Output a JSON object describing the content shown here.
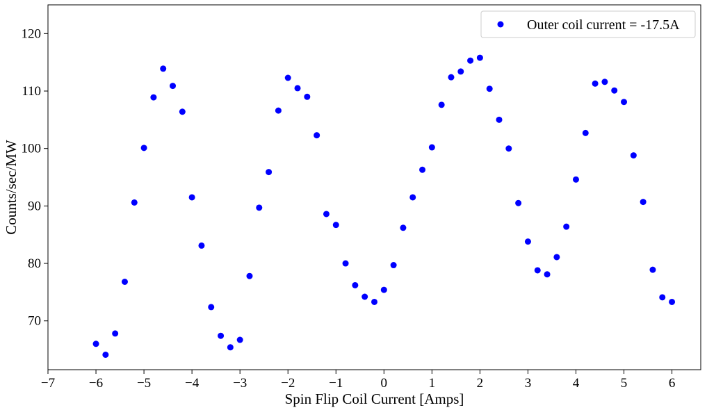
{
  "chart_data": {
    "type": "scatter",
    "xlabel": "Spin Flip Coil Current [Amps]",
    "ylabel": "Counts/sec/MW",
    "xlim": [
      -7,
      6.6
    ],
    "ylim": [
      61.5,
      125
    ],
    "xticks": [
      -7,
      -6,
      -5,
      -4,
      -3,
      -2,
      -1,
      0,
      1,
      2,
      3,
      4,
      5,
      6
    ],
    "xtick_labels": [
      "−7",
      "−6",
      "−5",
      "−4",
      "−3",
      "−2",
      "−1",
      "0",
      "1",
      "2",
      "3",
      "4",
      "5",
      "6"
    ],
    "yticks": [
      70,
      80,
      90,
      100,
      110,
      120
    ],
    "ytick_labels": [
      "70",
      "80",
      "90",
      "100",
      "110",
      "120"
    ],
    "grid": false,
    "legend_position": "top-right",
    "series": [
      {
        "name": "Outer coil current = -17.5A",
        "color": "#0000ff",
        "marker": "circle",
        "x": [
          -6.0,
          -5.8,
          -5.6,
          -5.4,
          -5.2,
          -5.0,
          -4.8,
          -4.6,
          -4.4,
          -4.2,
          -4.0,
          -3.8,
          -3.6,
          -3.4,
          -3.2,
          -3.0,
          -2.8,
          -2.6,
          -2.4,
          -2.2,
          -2.0,
          -1.8,
          -1.6,
          -1.4,
          -1.2,
          -1.0,
          -0.8,
          -0.6,
          -0.4,
          -0.2,
          0.0,
          0.2,
          0.4,
          0.6,
          0.8,
          1.0,
          1.2,
          1.4,
          1.6,
          1.8,
          2.0,
          2.2,
          2.4,
          2.6,
          2.8,
          3.0,
          3.2,
          3.4,
          3.6,
          3.8,
          4.0,
          4.2,
          4.4,
          4.6,
          4.8,
          5.0,
          5.2,
          5.4,
          5.6,
          5.8,
          6.0
        ],
        "y": [
          66.0,
          64.1,
          67.8,
          76.8,
          90.6,
          100.1,
          108.9,
          113.9,
          110.9,
          106.4,
          91.5,
          83.1,
          72.4,
          67.4,
          65.4,
          66.7,
          77.8,
          89.7,
          95.9,
          106.6,
          112.3,
          110.5,
          109.0,
          102.3,
          88.6,
          86.7,
          80.0,
          76.2,
          74.2,
          73.3,
          75.4,
          79.7,
          86.2,
          91.5,
          96.3,
          100.2,
          107.6,
          112.4,
          113.4,
          115.3,
          115.8,
          110.4,
          105.0,
          100.0,
          90.5,
          83.8,
          78.8,
          78.1,
          81.1,
          86.4,
          94.6,
          102.7,
          111.3,
          111.6,
          110.1,
          108.1,
          98.8,
          90.7,
          78.9,
          74.1,
          73.3
        ]
      }
    ]
  }
}
